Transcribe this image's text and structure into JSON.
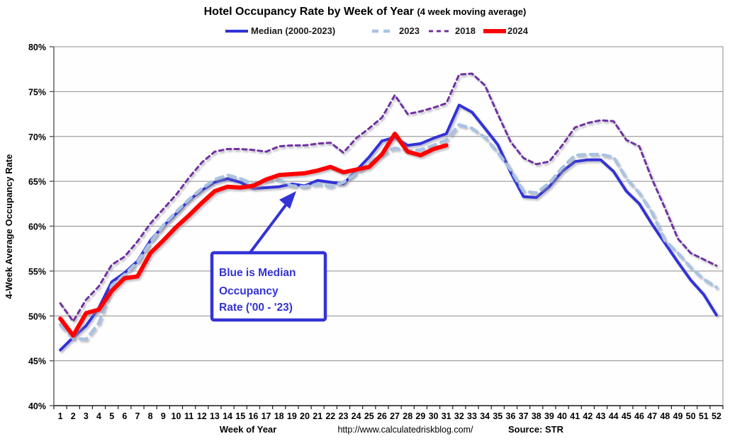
{
  "title": {
    "main": "Hotel Occupancy Rate by  Week of Year ",
    "suffix": "(4 week moving average)"
  },
  "legend": {
    "items": [
      {
        "label": "Median (2000-2023)",
        "color": "#3333D6",
        "dash": "",
        "width": 4
      },
      {
        "label": "2023",
        "color": "#A9C3E1",
        "dash": "10 8",
        "width": 4.5
      },
      {
        "label": "2018",
        "color": "#7030A0",
        "dash": "6 5",
        "width": 3
      },
      {
        "label": "2024",
        "color": "#FE0000",
        "dash": "",
        "width": 6
      }
    ]
  },
  "annotation": {
    "lines": [
      "Blue is Median",
      "Occupancy",
      "Rate ('00 - '23)"
    ],
    "color": "#3333D6"
  },
  "footer": {
    "url": "http://www.calculatedriskblog.com/",
    "source": "Source: STR"
  },
  "colors": {
    "grid": "#8C8C8C",
    "axis": "#595959",
    "plot_bg": "#FEFEFE"
  },
  "chart_data": {
    "type": "line",
    "title": "Hotel Occupancy Rate by Week of Year (4 week moving average)",
    "xlabel": "Week of Year",
    "ylabel": "4-Week Average Occupancy Rate",
    "x": [
      1,
      2,
      3,
      4,
      5,
      6,
      7,
      8,
      9,
      10,
      11,
      12,
      13,
      14,
      15,
      16,
      17,
      18,
      19,
      20,
      21,
      22,
      23,
      24,
      25,
      26,
      27,
      28,
      29,
      30,
      31,
      32,
      33,
      34,
      35,
      36,
      37,
      38,
      39,
      40,
      41,
      42,
      43,
      44,
      45,
      46,
      47,
      48,
      49,
      50,
      51,
      52
    ],
    "ylim": [
      40,
      80
    ],
    "yticks": [
      40,
      45,
      50,
      55,
      60,
      65,
      70,
      75,
      80
    ],
    "ytick_suffix": "%",
    "grid": true,
    "legend_position": "top",
    "series": [
      {
        "name": "Median (2000-2023)",
        "color": "#3333D6",
        "dash": "",
        "width": 4,
        "values": [
          46.2,
          47.6,
          48.9,
          50.9,
          53.8,
          54.8,
          56.1,
          58.4,
          60.0,
          61.4,
          62.9,
          64.0,
          64.9,
          65.3,
          64.9,
          64.2,
          64.3,
          64.4,
          64.7,
          64.5,
          65.1,
          64.9,
          64.7,
          66.2,
          67.7,
          69.5,
          69.9,
          69.0,
          69.2,
          69.8,
          70.3,
          73.5,
          72.7,
          70.9,
          69.1,
          66.0,
          63.3,
          63.2,
          64.4,
          66.1,
          67.2,
          67.4,
          67.4,
          66.1,
          63.9,
          62.5,
          60.2,
          58.1,
          56.0,
          54.0,
          52.4,
          50.1
        ]
      },
      {
        "name": "2023",
        "color": "#A9C3E1",
        "dash": "10 8",
        "width": 4.5,
        "values": [
          49.0,
          47.5,
          47.4,
          49.2,
          53.4,
          54.6,
          56.0,
          58.2,
          60.1,
          61.6,
          63.0,
          64.2,
          65.2,
          65.7,
          65.3,
          64.7,
          65.1,
          65.2,
          64.5,
          64.4,
          64.7,
          64.4,
          64.9,
          65.9,
          67.0,
          68.0,
          68.7,
          68.4,
          68.5,
          69.0,
          69.6,
          71.3,
          70.9,
          69.9,
          68.2,
          66.3,
          63.9,
          63.7,
          64.8,
          66.5,
          67.9,
          68.0,
          68.0,
          67.7,
          65.3,
          63.7,
          61.5,
          58.4,
          57.0,
          55.4,
          54.1,
          53.2
        ]
      },
      {
        "name": "2018",
        "color": "#7030A0",
        "dash": "6 5",
        "width": 3,
        "values": [
          51.4,
          49.4,
          51.8,
          53.3,
          55.7,
          56.6,
          58.3,
          60.3,
          61.9,
          63.5,
          65.4,
          67.1,
          68.3,
          68.6,
          68.6,
          68.5,
          68.3,
          68.9,
          69.0,
          69.0,
          69.2,
          69.3,
          68.2,
          69.8,
          70.9,
          72.1,
          74.6,
          72.5,
          72.8,
          73.2,
          73.7,
          76.9,
          77.0,
          75.7,
          72.5,
          69.4,
          67.6,
          66.9,
          67.2,
          69.0,
          71.0,
          71.5,
          71.8,
          71.7,
          69.6,
          68.9,
          65.2,
          62.0,
          58.6,
          57.0,
          56.3,
          55.6
        ]
      },
      {
        "name": "2024",
        "color": "#FE0000",
        "dash": "",
        "width": 6,
        "values": [
          49.7,
          47.8,
          50.3,
          50.7,
          52.8,
          54.2,
          54.4,
          57.0,
          58.4,
          59.9,
          61.2,
          62.6,
          63.9,
          64.4,
          64.3,
          64.5,
          65.2,
          65.7,
          65.8,
          65.9,
          66.2,
          66.6,
          66.0,
          66.3,
          66.6,
          68.0,
          70.3,
          68.3,
          67.9,
          68.6,
          69.0
        ]
      }
    ]
  }
}
